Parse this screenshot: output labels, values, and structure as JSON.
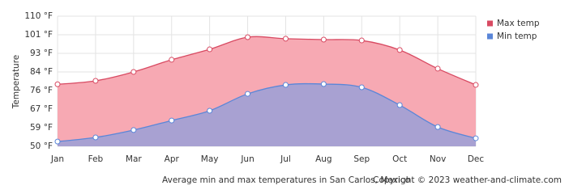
{
  "chart_data": {
    "type": "area",
    "y_label": "Temperature",
    "caption": "Average min and max temperatures in San Carlos, Mexico",
    "copyright": "Copyright © 2023  weather-and-climate.com",
    "categories": [
      "Jan",
      "Feb",
      "Mar",
      "Apr",
      "May",
      "Jun",
      "Jul",
      "Aug",
      "Sep",
      "Oct",
      "Nov",
      "Dec"
    ],
    "series": [
      {
        "name": "Max temp",
        "color": "#d84a62",
        "fill": "#f7a9b3",
        "values": [
          78.6,
          80.2,
          84.3,
          89.9,
          94.7,
          100.3,
          99.6,
          99.2,
          98.8,
          94.4,
          85.8,
          78.3
        ]
      },
      {
        "name": "Min temp",
        "color": "#5a86d8",
        "fill": "#a8a1d2",
        "values": [
          52.2,
          54.1,
          57.5,
          61.9,
          66.4,
          74.2,
          78.3,
          78.7,
          77.2,
          69.0,
          58.9,
          53.7
        ]
      }
    ],
    "ylim": [
      50,
      110
    ],
    "yticks": [
      {
        "value": 50,
        "label": "50 °F"
      },
      {
        "value": 58.57,
        "label": "59 °F"
      },
      {
        "value": 67.14,
        "label": "67 °F"
      },
      {
        "value": 75.71,
        "label": "76 °F"
      },
      {
        "value": 84.29,
        "label": "84 °F"
      },
      {
        "value": 92.86,
        "label": "93 °F"
      },
      {
        "value": 101.43,
        "label": "101 °F"
      },
      {
        "value": 110,
        "label": "110 °F"
      }
    ],
    "grid": true,
    "legend": "top-right"
  }
}
